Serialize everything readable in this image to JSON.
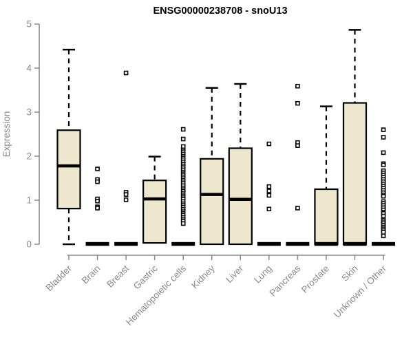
{
  "chart_data": {
    "type": "boxplot",
    "title": "ENSG00000238708 - snoU13",
    "ylabel": "Expression",
    "xlabel": "",
    "ylim": [
      0,
      5
    ],
    "yticks": [
      0,
      1,
      2,
      3,
      4,
      5
    ],
    "grid": false,
    "legend": "none",
    "colors": {
      "box_fill": "#EDE7CE",
      "box_stroke": "#000000",
      "median": "#000000",
      "whisker": "#000000",
      "outlier_stroke": "#000000",
      "outlier_fill": "#ffffff",
      "axis": "#888888",
      "tick_label": "#8a8a8a",
      "title": "#000000",
      "background": "#ffffff"
    },
    "categories": [
      {
        "label": "Bladder",
        "whisker_low": 0,
        "q1": 0.81,
        "median": 1.78,
        "q3": 2.59,
        "whisker_high": 4.42,
        "outliers": []
      },
      {
        "label": "Brain",
        "whisker_low": 0,
        "q1": 0,
        "median": 0,
        "q3": 0,
        "whisker_high": 0,
        "outliers": [
          1.71,
          1.47,
          1.42,
          1.03,
          0.98,
          0.85,
          0.82
        ]
      },
      {
        "label": "Breast",
        "whisker_low": 0,
        "q1": 0,
        "median": 0,
        "q3": 0,
        "whisker_high": 0,
        "outliers": [
          3.89,
          1.18,
          1.13,
          1.01
        ]
      },
      {
        "label": "Gastric",
        "whisker_low": 0.03,
        "q1": 0.03,
        "median": 1.03,
        "q3": 1.45,
        "whisker_high": 1.99,
        "outliers": []
      },
      {
        "label": "Hematopoietic cells",
        "whisker_low": 0,
        "q1": 0,
        "median": 0,
        "q3": 0,
        "whisker_high": 0,
        "outliers": [
          2.61,
          2.39,
          2.22,
          2.14,
          2.1,
          2.05,
          2.0,
          1.96,
          1.92,
          1.87,
          1.82,
          1.78,
          1.74,
          1.69,
          1.64,
          1.6,
          1.56,
          1.51,
          1.46,
          1.42,
          1.38,
          1.33,
          1.28,
          1.24,
          1.2,
          1.15,
          1.1,
          1.06,
          1.02,
          0.97,
          0.92,
          0.88,
          0.84,
          0.79,
          0.74,
          0.7,
          0.66,
          0.61,
          0.56,
          0.52,
          0.47
        ]
      },
      {
        "label": "Kidney",
        "whisker_low": 0,
        "q1": 0,
        "median": 1.13,
        "q3": 1.94,
        "whisker_high": 3.55,
        "outliers": []
      },
      {
        "label": "Liver",
        "whisker_low": 0,
        "q1": 0,
        "median": 1.02,
        "q3": 2.18,
        "whisker_high": 3.64,
        "outliers": []
      },
      {
        "label": "Lung",
        "whisker_low": 0,
        "q1": 0,
        "median": 0,
        "q3": 0,
        "whisker_high": 0,
        "outliers": [
          2.28,
          1.31,
          1.21,
          1.11,
          0.8
        ]
      },
      {
        "label": "Pancreas",
        "whisker_low": 0,
        "q1": 0,
        "median": 0,
        "q3": 0,
        "whisker_high": 0,
        "outliers": [
          3.59,
          3.2,
          2.31,
          2.24,
          0.82
        ]
      },
      {
        "label": "Prostate",
        "whisker_low": 0,
        "q1": 0,
        "median": 0,
        "q3": 1.25,
        "whisker_high": 3.13,
        "outliers": []
      },
      {
        "label": "Skin",
        "whisker_low": 0,
        "q1": 0,
        "median": 0,
        "q3": 3.21,
        "whisker_high": 4.87,
        "outliers": []
      },
      {
        "label": "Unknown / Other",
        "whisker_low": 0,
        "q1": 0,
        "median": 0,
        "q3": 0,
        "whisker_high": 0,
        "outliers": [
          2.6,
          2.43,
          2.08,
          1.83,
          1.8,
          1.67,
          1.62,
          1.57,
          1.52,
          1.47,
          1.42,
          1.37,
          1.32,
          1.27,
          1.22,
          1.17,
          1.12,
          1.09,
          0.97,
          0.93,
          0.88,
          0.83,
          0.78,
          0.73,
          0.7,
          0.64,
          0.55,
          0.51,
          0.47,
          0.43,
          0.39,
          0.35,
          0.31,
          0.27,
          0.19
        ]
      }
    ]
  }
}
